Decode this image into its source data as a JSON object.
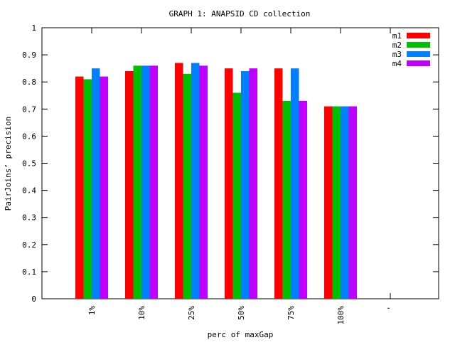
{
  "chart_data": {
    "type": "bar",
    "title": "GRAPH 1: ANAPSID CD collection",
    "xlabel": "perc of maxGap",
    "ylabel": "PairJoins’ precision",
    "categories": [
      "1%",
      "10%",
      "25%",
      "50%",
      "75%",
      "100%",
      "'"
    ],
    "series": [
      {
        "name": "m1",
        "values": [
          0.82,
          0.84,
          0.87,
          0.85,
          0.85,
          0.71,
          null
        ]
      },
      {
        "name": "m2",
        "values": [
          0.81,
          0.86,
          0.83,
          0.76,
          0.73,
          0.71,
          null
        ]
      },
      {
        "name": "m3",
        "values": [
          0.85,
          0.86,
          0.87,
          0.84,
          0.85,
          0.71,
          null
        ]
      },
      {
        "name": "m4",
        "values": [
          0.82,
          0.86,
          0.86,
          0.85,
          0.73,
          0.71,
          null
        ]
      }
    ],
    "colors": {
      "m1": "#ff0000",
      "m2": "#00c000",
      "m3": "#0080ff",
      "m4": "#c000ff"
    },
    "ylim": [
      0,
      1
    ],
    "yticks": [
      "0",
      "0.1",
      "0.2",
      "0.3",
      "0.4",
      "0.5",
      "0.6",
      "0.7",
      "0.8",
      "0.9",
      "1"
    ],
    "grid": false,
    "legend_position": "top-right"
  }
}
